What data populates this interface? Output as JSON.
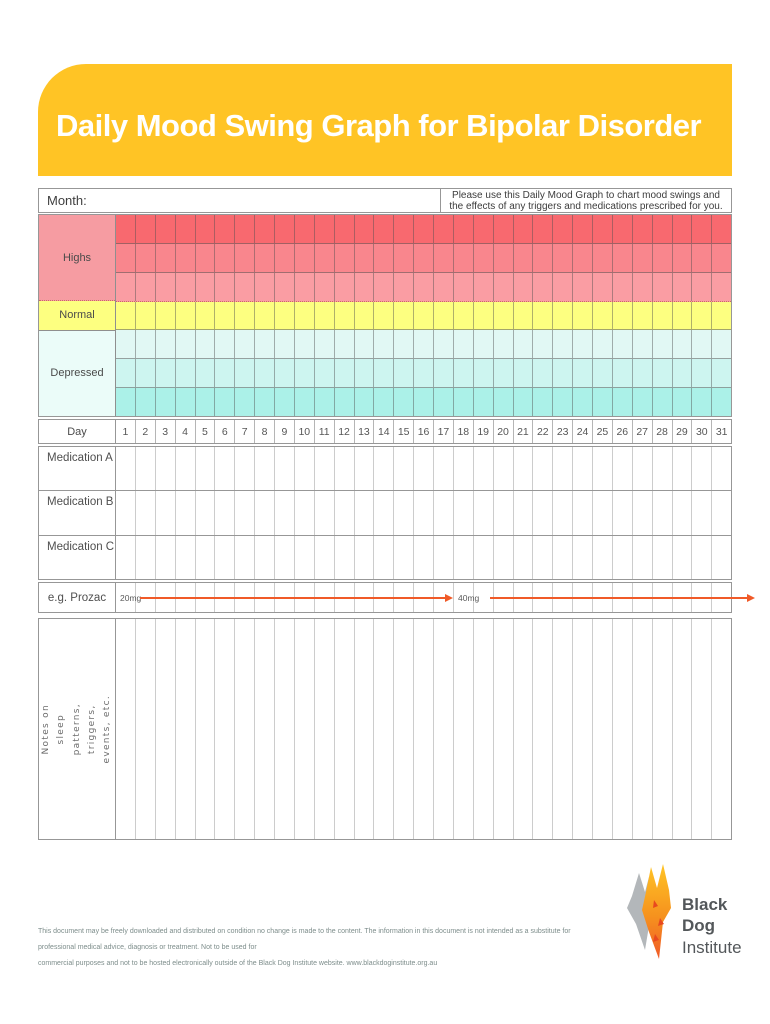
{
  "header": {
    "title": "Daily Mood Swing Graph for Bipolar Disorder"
  },
  "month": {
    "label": "Month:",
    "instruction": "Please use this Daily Mood Graph to chart mood swings and the effects of any triggers and medications prescribed for you."
  },
  "mood_bands": [
    {
      "label": "Highs",
      "rows": 3
    },
    {
      "label": "Normal",
      "rows": 1
    },
    {
      "label": "Depressed",
      "rows": 3
    }
  ],
  "day_header": {
    "label": "Day",
    "days": [
      1,
      2,
      3,
      4,
      5,
      6,
      7,
      8,
      9,
      10,
      11,
      12,
      13,
      14,
      15,
      16,
      17,
      18,
      19,
      20,
      21,
      22,
      23,
      24,
      25,
      26,
      27,
      28,
      29,
      30,
      31
    ]
  },
  "medications": {
    "rows": [
      "Medication A",
      "Medication B",
      "Medication C"
    ]
  },
  "example_row": {
    "label": "e.g. Prozac",
    "dose1": "20mg",
    "dose2": "40mg"
  },
  "notes": {
    "label": "Notes on sleep patterns, triggers,\nevents, etc."
  },
  "footer": {
    "disclaimer_line1": "This document may be freely downloaded and distributed on condition no change is made to the content. The information in this document is not intended as a substitute for professional medical advice, diagnosis or treatment. Not to be used for",
    "disclaimer_line2": "commercial purposes and not to be hosted electronically outside of the Black Dog Institute website. www.blackdoginstitute.org.au",
    "logo_line1": "Black Dog",
    "logo_line2": "Institute"
  },
  "colors": {
    "banner": "#FFC425",
    "arrow": "#F05A28",
    "mood_rows": [
      "#F8696F",
      "#F9868D",
      "#FA9DA3",
      "#FDFF80",
      "#E1F8F4",
      "#CDF5F0",
      "#ABF1E8"
    ],
    "band_label_bg": {
      "highs": "#F69CA2",
      "normal": "#FDFF80",
      "depressed": "#EBFCF9"
    },
    "logo_gray": "#B3B7BA",
    "logo_orange": "#F6921E",
    "logo_yellow": "#FFC425",
    "logo_red": "#E8491F"
  }
}
